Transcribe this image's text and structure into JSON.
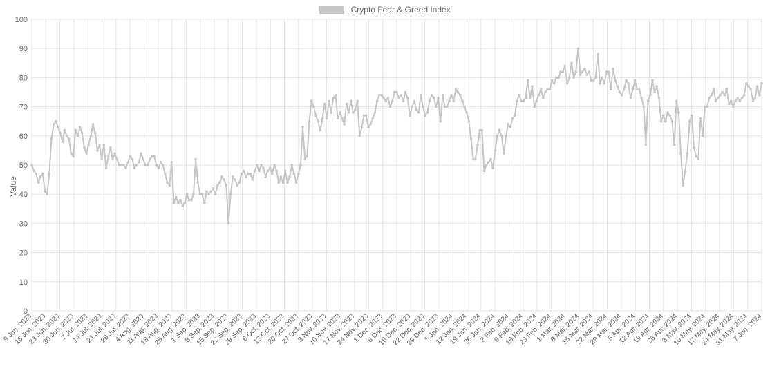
{
  "chart": {
    "type": "line",
    "title": null,
    "legend_label": "Crypto Fear & Greed Index",
    "ylabel": "Value",
    "ylim": [
      0,
      100
    ],
    "ytick_step": 10,
    "grid_color": "#e5e5e5",
    "border_color": "#d0d0d0",
    "background_color": "#ffffff",
    "line_color": "#c6c6c6",
    "line_width": 2,
    "marker_color": "#c6c6c6",
    "marker_radius": 1.8,
    "legend_swatch_color": "#c6c6c6",
    "label_fontsize": 12,
    "tick_fontsize": 11,
    "xtick_fontsize": 10,
    "tick_color": "#666666",
    "xlabels": [
      "9 Jun, 2023",
      "16 Jun, 2023",
      "23 Jun, 2023",
      "30 Jun, 2023",
      "7 Jul, 2023",
      "14 Jul, 2023",
      "21 Jul, 2023",
      "28 Jul, 2023",
      "4 Aug, 2023",
      "11 Aug, 2023",
      "18 Aug, 2023",
      "25 Aug, 2023",
      "1 Sep, 2023",
      "8 Sep, 2023",
      "15 Sep, 2023",
      "22 Sep, 2023",
      "29 Sep, 2023",
      "6 Oct, 2023",
      "13 Oct, 2023",
      "20 Oct, 2023",
      "27 Oct, 2023",
      "3 Nov, 2023",
      "10 Nov, 2023",
      "17 Nov, 2023",
      "24 Nov, 2023",
      "1 Dec, 2023",
      "8 Dec, 2023",
      "15 Dec, 2023",
      "22 Dec, 2023",
      "29 Dec, 2023",
      "5 Jan, 2024",
      "12 Jan, 2024",
      "19 Jan, 2024",
      "26 Jan, 2024",
      "2 Feb, 2024",
      "9 Feb, 2024",
      "16 Feb, 2024",
      "23 Feb, 2024",
      "1 Mar, 2024",
      "8 Mar, 2024",
      "15 Mar, 2024",
      "22 Mar, 2024",
      "29 Mar, 2024",
      "5 Apr, 2024",
      "12 Apr, 2024",
      "19 Apr, 2024",
      "26 Apr, 2024",
      "3 May, 2024",
      "10 May, 2024",
      "17 May, 2024",
      "24 May, 2024",
      "31 May, 2024",
      "7 Jun, 2024"
    ],
    "values": [
      50,
      48,
      47,
      44,
      46,
      47,
      41,
      40,
      47,
      59,
      64,
      65,
      63,
      61,
      58,
      62,
      60,
      59,
      54,
      53,
      62,
      60,
      63,
      61,
      56,
      54,
      57,
      60,
      64,
      61,
      55,
      57,
      52,
      57,
      49,
      53,
      56,
      52,
      54,
      52,
      50,
      50,
      50,
      49,
      51,
      53,
      52,
      49,
      50,
      51,
      54,
      52,
      50,
      50,
      52,
      53,
      53,
      50,
      49,
      51,
      50,
      47,
      44,
      43,
      51,
      37,
      39,
      37,
      38,
      36,
      37,
      40,
      38,
      38,
      40,
      52,
      44,
      40,
      40,
      37,
      41,
      40,
      41,
      42,
      40,
      43,
      44,
      46,
      45,
      43,
      30,
      40,
      46,
      45,
      43,
      44,
      47,
      48,
      46,
      47,
      47,
      45,
      48,
      50,
      48,
      50,
      49,
      46,
      48,
      49,
      47,
      50,
      48,
      44,
      46,
      44,
      48,
      44,
      46,
      50,
      47,
      44,
      47,
      50,
      63,
      52,
      53,
      65,
      72,
      70,
      67,
      65,
      62,
      66,
      71,
      66,
      72,
      68,
      73,
      74,
      66,
      68,
      66,
      64,
      71,
      68,
      72,
      68,
      69,
      72,
      60,
      63,
      67,
      67,
      63,
      64,
      66,
      68,
      72,
      74,
      74,
      73,
      72,
      73,
      70,
      72,
      75,
      75,
      73,
      74,
      72,
      75,
      73,
      67,
      70,
      72,
      69,
      68,
      74,
      70,
      67,
      68,
      72,
      74,
      73,
      70,
      73,
      65,
      74,
      70,
      70,
      72,
      74,
      72,
      76,
      75,
      74,
      72,
      70,
      68,
      65,
      59,
      52,
      52,
      57,
      62,
      62,
      48,
      50,
      51,
      52,
      49,
      55,
      60,
      62,
      60,
      54,
      60,
      64,
      63,
      66,
      67,
      72,
      74,
      72,
      72,
      73,
      79,
      73,
      77,
      70,
      72,
      74,
      76,
      73,
      75,
      76,
      76,
      79,
      78,
      80,
      80,
      82,
      82,
      84,
      78,
      80,
      85,
      80,
      82,
      90,
      81,
      82,
      83,
      81,
      82,
      79,
      79,
      80,
      88,
      78,
      80,
      78,
      82,
      82,
      76,
      83,
      79,
      77,
      75,
      74,
      76,
      79,
      78,
      73,
      76,
      79,
      76,
      76,
      73,
      70,
      57,
      72,
      74,
      79,
      75,
      77,
      73,
      65,
      67,
      65,
      68,
      67,
      65,
      57,
      72,
      68,
      54,
      43,
      48,
      54,
      65,
      67,
      56,
      53,
      52,
      66,
      60,
      70,
      70,
      73,
      74,
      76,
      72,
      73,
      74,
      75,
      74,
      76,
      71,
      72,
      70,
      72,
      73,
      72,
      73,
      74,
      78,
      77,
      76,
      72,
      73,
      77,
      74,
      78
    ]
  }
}
